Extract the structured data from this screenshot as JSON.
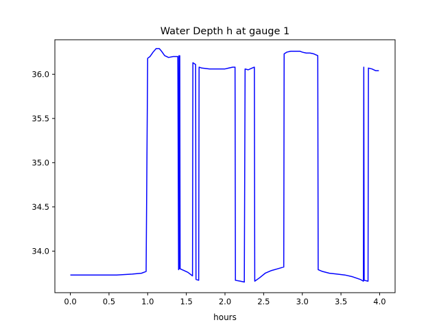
{
  "chart_data": {
    "type": "line",
    "title": "Water Depth h at gauge 1",
    "xlabel": "hours",
    "ylabel": "",
    "xlim": [
      -0.2,
      4.2
    ],
    "ylim": [
      33.53,
      36.39
    ],
    "grid": false,
    "x_ticks": [
      0.0,
      0.5,
      1.0,
      1.5,
      2.0,
      2.5,
      3.0,
      3.5,
      4.0
    ],
    "x_tick_labels": [
      "0.0",
      "0.5",
      "1.0",
      "1.5",
      "2.0",
      "2.5",
      "3.0",
      "3.5",
      "4.0"
    ],
    "y_ticks": [
      34.0,
      34.5,
      35.0,
      35.5,
      36.0
    ],
    "y_tick_labels": [
      "34.0",
      "34.5",
      "35.0",
      "35.5",
      "36.0"
    ],
    "series": [
      {
        "color": "#0000ff",
        "points": [
          [
            0.0,
            33.73
          ],
          [
            0.3,
            33.73
          ],
          [
            0.6,
            33.73
          ],
          [
            0.8,
            33.74
          ],
          [
            0.92,
            33.75
          ],
          [
            0.98,
            33.77
          ],
          [
            1.0,
            36.18
          ],
          [
            1.03,
            36.2
          ],
          [
            1.07,
            36.25
          ],
          [
            1.11,
            36.29
          ],
          [
            1.15,
            36.29
          ],
          [
            1.18,
            36.26
          ],
          [
            1.22,
            36.21
          ],
          [
            1.27,
            36.19
          ],
          [
            1.33,
            36.2
          ],
          [
            1.38,
            36.2
          ],
          [
            1.39,
            36.2
          ],
          [
            1.4,
            33.79
          ],
          [
            1.405,
            36.21
          ],
          [
            1.41,
            33.8
          ],
          [
            1.415,
            36.21
          ],
          [
            1.42,
            33.8
          ],
          [
            1.47,
            33.78
          ],
          [
            1.52,
            33.76
          ],
          [
            1.58,
            33.72
          ],
          [
            1.585,
            36.13
          ],
          [
            1.62,
            36.11
          ],
          [
            1.625,
            33.68
          ],
          [
            1.66,
            33.67
          ],
          [
            1.665,
            36.08
          ],
          [
            1.7,
            36.07
          ],
          [
            1.8,
            36.06
          ],
          [
            1.9,
            36.06
          ],
          [
            2.0,
            36.06
          ],
          [
            2.05,
            36.07
          ],
          [
            2.1,
            36.08
          ],
          [
            2.13,
            36.08
          ],
          [
            2.135,
            33.67
          ],
          [
            2.2,
            33.66
          ],
          [
            2.25,
            33.65
          ],
          [
            2.26,
            36.06
          ],
          [
            2.3,
            36.05
          ],
          [
            2.35,
            36.07
          ],
          [
            2.38,
            36.08
          ],
          [
            2.385,
            33.66
          ],
          [
            2.45,
            33.7
          ],
          [
            2.52,
            33.75
          ],
          [
            2.6,
            33.78
          ],
          [
            2.68,
            33.8
          ],
          [
            2.76,
            33.82
          ],
          [
            2.765,
            36.23
          ],
          [
            2.8,
            36.25
          ],
          [
            2.85,
            36.26
          ],
          [
            2.9,
            36.26
          ],
          [
            2.97,
            36.26
          ],
          [
            3.0,
            36.25
          ],
          [
            3.05,
            36.24
          ],
          [
            3.1,
            36.24
          ],
          [
            3.15,
            36.23
          ],
          [
            3.2,
            36.21
          ],
          [
            3.205,
            33.79
          ],
          [
            3.26,
            33.77
          ],
          [
            3.35,
            33.75
          ],
          [
            3.45,
            33.74
          ],
          [
            3.55,
            33.73
          ],
          [
            3.65,
            33.71
          ],
          [
            3.75,
            33.68
          ],
          [
            3.79,
            33.66
          ],
          [
            3.795,
            36.08
          ],
          [
            3.8,
            33.67
          ],
          [
            3.85,
            33.66
          ],
          [
            3.855,
            36.07
          ],
          [
            3.9,
            36.06
          ],
          [
            3.95,
            36.04
          ],
          [
            3.99,
            36.04
          ]
        ]
      }
    ]
  }
}
